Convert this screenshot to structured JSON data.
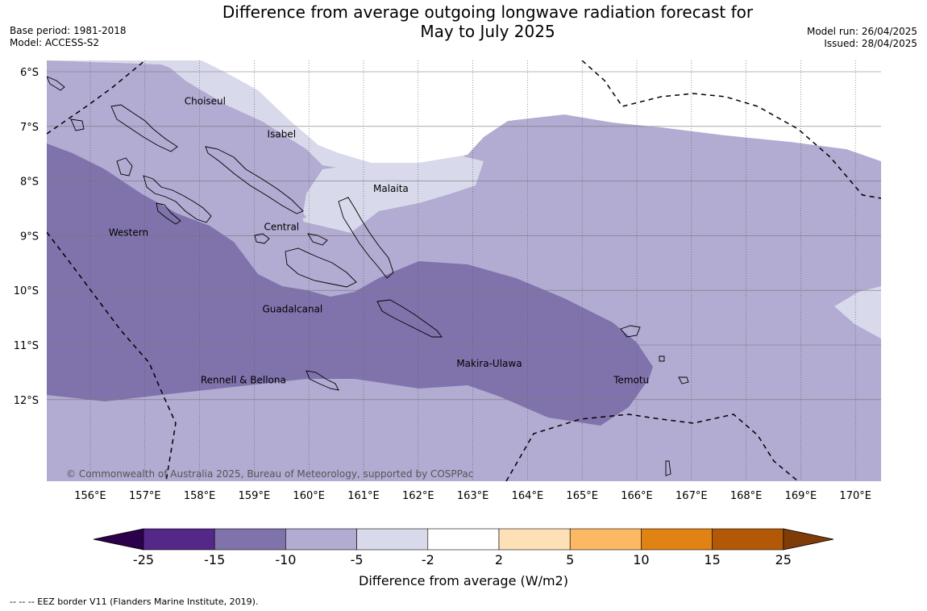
{
  "header": {
    "title_line1": "Difference from average outgoing longwave radiation forecast for",
    "title_line2": "May to July 2025",
    "base_period": "Base period: 1981-2018",
    "model": "Model: ACCESS-S2",
    "model_run": "Model run: 26/04/2025",
    "issued": "Issued: 28/04/2025"
  },
  "map": {
    "lon_ticks": [
      "156°E",
      "157°E",
      "158°E",
      "159°E",
      "160°E",
      "161°E",
      "162°E",
      "163°E",
      "164°E",
      "165°E",
      "166°E",
      "167°E",
      "168°E",
      "169°E",
      "170°E"
    ],
    "lat_ticks": [
      "6°S",
      "7°S",
      "8°S",
      "9°S",
      "10°S",
      "11°S",
      "12°S"
    ],
    "regions": [
      {
        "name": "Choiseul",
        "lon": 158.1,
        "lat": -6.6
      },
      {
        "name": "Isabel",
        "lon": 159.5,
        "lat": -7.2
      },
      {
        "name": "Malaita",
        "lon": 161.5,
        "lat": -8.2
      },
      {
        "name": "Central",
        "lon": 159.5,
        "lat": -8.9
      },
      {
        "name": "Western",
        "lon": 156.7,
        "lat": -9.0
      },
      {
        "name": "Guadalcanal",
        "lon": 159.7,
        "lat": -10.4
      },
      {
        "name": "Makira-Ulawa",
        "lon": 163.3,
        "lat": -11.4
      },
      {
        "name": "Temotu",
        "lon": 165.9,
        "lat": -11.7
      },
      {
        "name": "Rennell & Bellona",
        "lon": 158.8,
        "lat": -11.7
      }
    ],
    "copyright": "© Commonwealth of Australia 2025, Bureau of Meteorology, supported by COSPPac"
  },
  "colorbar": {
    "label": "Difference from average (W/m2)",
    "ticks": [
      "-25",
      "-15",
      "-10",
      "-5",
      "-2",
      "2",
      "5",
      "10",
      "15",
      "25"
    ],
    "colors": [
      "#542788",
      "#8073ac",
      "#b2abd2",
      "#d8daeb",
      "#ffffff",
      "#fee0b6",
      "#fdb863",
      "#e08214",
      "#b35806"
    ],
    "under_color": "#2d004b",
    "over_color": "#7f3b08"
  },
  "footer": "--  --  -- EEZ border V11 (Flanders Marine Institute, 2019)."
}
